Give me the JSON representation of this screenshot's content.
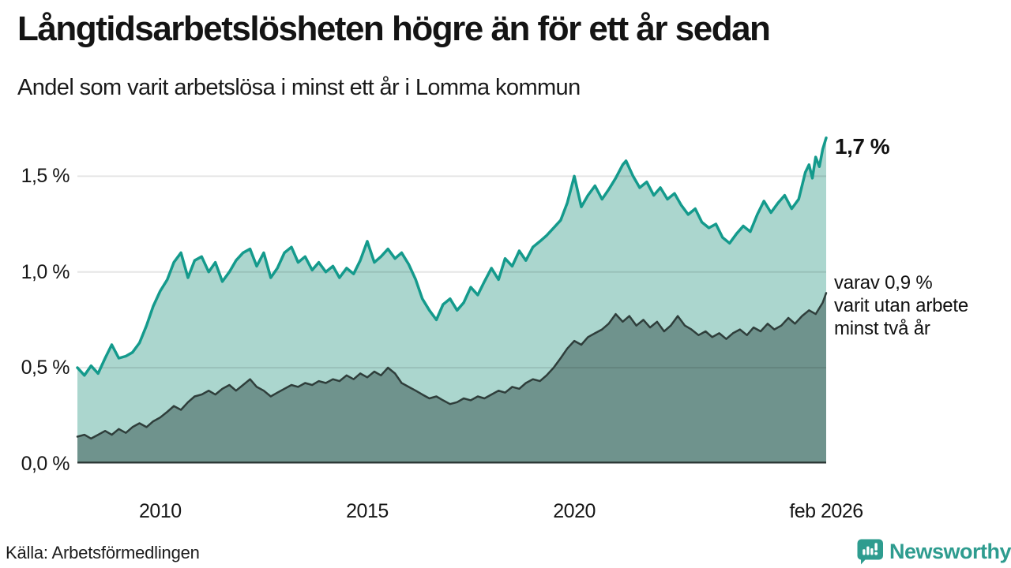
{
  "source": {
    "text": "Källa: Arbetsförmedlingen"
  },
  "logo": {
    "text": "Newsworthy",
    "icon": "bar-chart-speech-bubble-icon",
    "color": "#2e9c8f"
  },
  "colors": {
    "background": "#ffffff",
    "grid_overlay": "rgba(0,0,0,0.10)",
    "axis": "#2b3634",
    "text": "#161616"
  },
  "chart_data": {
    "type": "area",
    "title": "Långtidsarbetslösheten högre än för ett år sedan",
    "subtitle": "Andel som varit arbetslösa i minst ett år i Lomma kommun",
    "xlabel": "",
    "ylabel": "",
    "xlim": [
      2008.0,
      2026.0833
    ],
    "ylim": [
      0,
      1.765
    ],
    "grid": "horizontal",
    "legend": "none",
    "x_ticks": [
      {
        "value": 2010,
        "label": "2010"
      },
      {
        "value": 2015,
        "label": "2015"
      },
      {
        "value": 2020,
        "label": "2020"
      },
      {
        "value": 2026.0833,
        "label": "feb 2026"
      }
    ],
    "y_ticks": [
      {
        "value": 0.0,
        "label": "0,0 %"
      },
      {
        "value": 0.5,
        "label": "0,5 %"
      },
      {
        "value": 1.0,
        "label": "1,0 %"
      },
      {
        "value": 1.5,
        "label": "1,5 %"
      }
    ],
    "annotations": [
      {
        "text": "1,7 %",
        "style": "bold",
        "anchor_value": 1.7
      },
      {
        "lines": [
          "varav 0,9 %",
          "varit utan arbete",
          "minst två år"
        ],
        "style": "regular",
        "anchor_value": 0.9
      }
    ],
    "series": [
      {
        "id": "arbetslosa-minst-ett-ar",
        "end_label": "1,7 %",
        "end_value": 1.7,
        "color": "#149a8c",
        "fill": "#abd6ce",
        "stroke_width": 3.5,
        "points": [
          [
            2008.0,
            0.5
          ],
          [
            2008.17,
            0.46
          ],
          [
            2008.33,
            0.51
          ],
          [
            2008.5,
            0.47
          ],
          [
            2008.67,
            0.55
          ],
          [
            2008.83,
            0.62
          ],
          [
            2009.0,
            0.55
          ],
          [
            2009.17,
            0.56
          ],
          [
            2009.33,
            0.58
          ],
          [
            2009.5,
            0.63
          ],
          [
            2009.67,
            0.72
          ],
          [
            2009.83,
            0.82
          ],
          [
            2010.0,
            0.9
          ],
          [
            2010.17,
            0.96
          ],
          [
            2010.33,
            1.05
          ],
          [
            2010.5,
            1.1
          ],
          [
            2010.67,
            0.97
          ],
          [
            2010.83,
            1.06
          ],
          [
            2011.0,
            1.08
          ],
          [
            2011.17,
            1.0
          ],
          [
            2011.33,
            1.05
          ],
          [
            2011.5,
            0.95
          ],
          [
            2011.67,
            1.0
          ],
          [
            2011.83,
            1.06
          ],
          [
            2012.0,
            1.1
          ],
          [
            2012.17,
            1.12
          ],
          [
            2012.33,
            1.03
          ],
          [
            2012.5,
            1.1
          ],
          [
            2012.67,
            0.97
          ],
          [
            2012.83,
            1.02
          ],
          [
            2013.0,
            1.1
          ],
          [
            2013.17,
            1.13
          ],
          [
            2013.33,
            1.05
          ],
          [
            2013.5,
            1.08
          ],
          [
            2013.67,
            1.01
          ],
          [
            2013.83,
            1.05
          ],
          [
            2014.0,
            1.0
          ],
          [
            2014.17,
            1.03
          ],
          [
            2014.33,
            0.97
          ],
          [
            2014.5,
            1.02
          ],
          [
            2014.67,
            0.99
          ],
          [
            2014.83,
            1.06
          ],
          [
            2015.0,
            1.16
          ],
          [
            2015.17,
            1.05
          ],
          [
            2015.33,
            1.08
          ],
          [
            2015.5,
            1.12
          ],
          [
            2015.67,
            1.07
          ],
          [
            2015.83,
            1.1
          ],
          [
            2016.0,
            1.04
          ],
          [
            2016.17,
            0.96
          ],
          [
            2016.33,
            0.86
          ],
          [
            2016.5,
            0.8
          ],
          [
            2016.67,
            0.75
          ],
          [
            2016.83,
            0.83
          ],
          [
            2017.0,
            0.86
          ],
          [
            2017.17,
            0.8
          ],
          [
            2017.33,
            0.84
          ],
          [
            2017.5,
            0.92
          ],
          [
            2017.67,
            0.88
          ],
          [
            2017.83,
            0.95
          ],
          [
            2018.0,
            1.02
          ],
          [
            2018.17,
            0.96
          ],
          [
            2018.33,
            1.07
          ],
          [
            2018.5,
            1.03
          ],
          [
            2018.67,
            1.11
          ],
          [
            2018.83,
            1.06
          ],
          [
            2019.0,
            1.13
          ],
          [
            2019.17,
            1.16
          ],
          [
            2019.33,
            1.19
          ],
          [
            2019.5,
            1.23
          ],
          [
            2019.67,
            1.27
          ],
          [
            2019.83,
            1.36
          ],
          [
            2020.0,
            1.5
          ],
          [
            2020.17,
            1.34
          ],
          [
            2020.33,
            1.4
          ],
          [
            2020.5,
            1.45
          ],
          [
            2020.67,
            1.38
          ],
          [
            2020.83,
            1.43
          ],
          [
            2021.0,
            1.49
          ],
          [
            2021.17,
            1.56
          ],
          [
            2021.25,
            1.58
          ],
          [
            2021.42,
            1.5
          ],
          [
            2021.58,
            1.44
          ],
          [
            2021.75,
            1.47
          ],
          [
            2021.92,
            1.4
          ],
          [
            2022.08,
            1.44
          ],
          [
            2022.25,
            1.38
          ],
          [
            2022.42,
            1.41
          ],
          [
            2022.58,
            1.35
          ],
          [
            2022.75,
            1.3
          ],
          [
            2022.92,
            1.33
          ],
          [
            2023.08,
            1.26
          ],
          [
            2023.25,
            1.23
          ],
          [
            2023.42,
            1.25
          ],
          [
            2023.58,
            1.18
          ],
          [
            2023.75,
            1.15
          ],
          [
            2023.92,
            1.2
          ],
          [
            2024.08,
            1.24
          ],
          [
            2024.25,
            1.21
          ],
          [
            2024.42,
            1.3
          ],
          [
            2024.58,
            1.37
          ],
          [
            2024.75,
            1.31
          ],
          [
            2024.92,
            1.36
          ],
          [
            2025.08,
            1.4
          ],
          [
            2025.25,
            1.33
          ],
          [
            2025.42,
            1.38
          ],
          [
            2025.58,
            1.52
          ],
          [
            2025.67,
            1.56
          ],
          [
            2025.75,
            1.49
          ],
          [
            2025.83,
            1.6
          ],
          [
            2025.92,
            1.55
          ],
          [
            2026.0,
            1.64
          ],
          [
            2026.0833,
            1.7
          ]
        ]
      },
      {
        "id": "arbetslosa-minst-tva-ar",
        "end_label": "varav 0,9 % varit utan arbete minst två år",
        "end_value": 0.9,
        "color": "#2f3e3b",
        "fill": "#6f938d",
        "stroke_width": 2.5,
        "points": [
          [
            2008.0,
            0.14
          ],
          [
            2008.17,
            0.15
          ],
          [
            2008.33,
            0.13
          ],
          [
            2008.5,
            0.15
          ],
          [
            2008.67,
            0.17
          ],
          [
            2008.83,
            0.15
          ],
          [
            2009.0,
            0.18
          ],
          [
            2009.17,
            0.16
          ],
          [
            2009.33,
            0.19
          ],
          [
            2009.5,
            0.21
          ],
          [
            2009.67,
            0.19
          ],
          [
            2009.83,
            0.22
          ],
          [
            2010.0,
            0.24
          ],
          [
            2010.17,
            0.27
          ],
          [
            2010.33,
            0.3
          ],
          [
            2010.5,
            0.28
          ],
          [
            2010.67,
            0.32
          ],
          [
            2010.83,
            0.35
          ],
          [
            2011.0,
            0.36
          ],
          [
            2011.17,
            0.38
          ],
          [
            2011.33,
            0.36
          ],
          [
            2011.5,
            0.39
          ],
          [
            2011.67,
            0.41
          ],
          [
            2011.83,
            0.38
          ],
          [
            2012.0,
            0.41
          ],
          [
            2012.17,
            0.44
          ],
          [
            2012.33,
            0.4
          ],
          [
            2012.5,
            0.38
          ],
          [
            2012.67,
            0.35
          ],
          [
            2012.83,
            0.37
          ],
          [
            2013.0,
            0.39
          ],
          [
            2013.17,
            0.41
          ],
          [
            2013.33,
            0.4
          ],
          [
            2013.5,
            0.42
          ],
          [
            2013.67,
            0.41
          ],
          [
            2013.83,
            0.43
          ],
          [
            2014.0,
            0.42
          ],
          [
            2014.17,
            0.44
          ],
          [
            2014.33,
            0.43
          ],
          [
            2014.5,
            0.46
          ],
          [
            2014.67,
            0.44
          ],
          [
            2014.83,
            0.47
          ],
          [
            2015.0,
            0.45
          ],
          [
            2015.17,
            0.48
          ],
          [
            2015.33,
            0.46
          ],
          [
            2015.5,
            0.5
          ],
          [
            2015.67,
            0.47
          ],
          [
            2015.83,
            0.42
          ],
          [
            2016.0,
            0.4
          ],
          [
            2016.17,
            0.38
          ],
          [
            2016.33,
            0.36
          ],
          [
            2016.5,
            0.34
          ],
          [
            2016.67,
            0.35
          ],
          [
            2016.83,
            0.33
          ],
          [
            2017.0,
            0.31
          ],
          [
            2017.17,
            0.32
          ],
          [
            2017.33,
            0.34
          ],
          [
            2017.5,
            0.33
          ],
          [
            2017.67,
            0.35
          ],
          [
            2017.83,
            0.34
          ],
          [
            2018.0,
            0.36
          ],
          [
            2018.17,
            0.38
          ],
          [
            2018.33,
            0.37
          ],
          [
            2018.5,
            0.4
          ],
          [
            2018.67,
            0.39
          ],
          [
            2018.83,
            0.42
          ],
          [
            2019.0,
            0.44
          ],
          [
            2019.17,
            0.43
          ],
          [
            2019.33,
            0.46
          ],
          [
            2019.5,
            0.5
          ],
          [
            2019.67,
            0.55
          ],
          [
            2019.83,
            0.6
          ],
          [
            2020.0,
            0.64
          ],
          [
            2020.17,
            0.62
          ],
          [
            2020.33,
            0.66
          ],
          [
            2020.5,
            0.68
          ],
          [
            2020.67,
            0.7
          ],
          [
            2020.83,
            0.73
          ],
          [
            2021.0,
            0.78
          ],
          [
            2021.17,
            0.74
          ],
          [
            2021.33,
            0.77
          ],
          [
            2021.5,
            0.72
          ],
          [
            2021.67,
            0.75
          ],
          [
            2021.83,
            0.71
          ],
          [
            2022.0,
            0.74
          ],
          [
            2022.17,
            0.69
          ],
          [
            2022.33,
            0.72
          ],
          [
            2022.5,
            0.77
          ],
          [
            2022.67,
            0.72
          ],
          [
            2022.83,
            0.7
          ],
          [
            2023.0,
            0.67
          ],
          [
            2023.17,
            0.69
          ],
          [
            2023.33,
            0.66
          ],
          [
            2023.5,
            0.68
          ],
          [
            2023.67,
            0.65
          ],
          [
            2023.83,
            0.68
          ],
          [
            2024.0,
            0.7
          ],
          [
            2024.17,
            0.67
          ],
          [
            2024.33,
            0.71
          ],
          [
            2024.5,
            0.69
          ],
          [
            2024.67,
            0.73
          ],
          [
            2024.83,
            0.7
          ],
          [
            2025.0,
            0.72
          ],
          [
            2025.17,
            0.76
          ],
          [
            2025.33,
            0.73
          ],
          [
            2025.5,
            0.77
          ],
          [
            2025.67,
            0.8
          ],
          [
            2025.83,
            0.78
          ],
          [
            2026.0,
            0.84
          ],
          [
            2026.0833,
            0.89
          ]
        ]
      }
    ]
  }
}
